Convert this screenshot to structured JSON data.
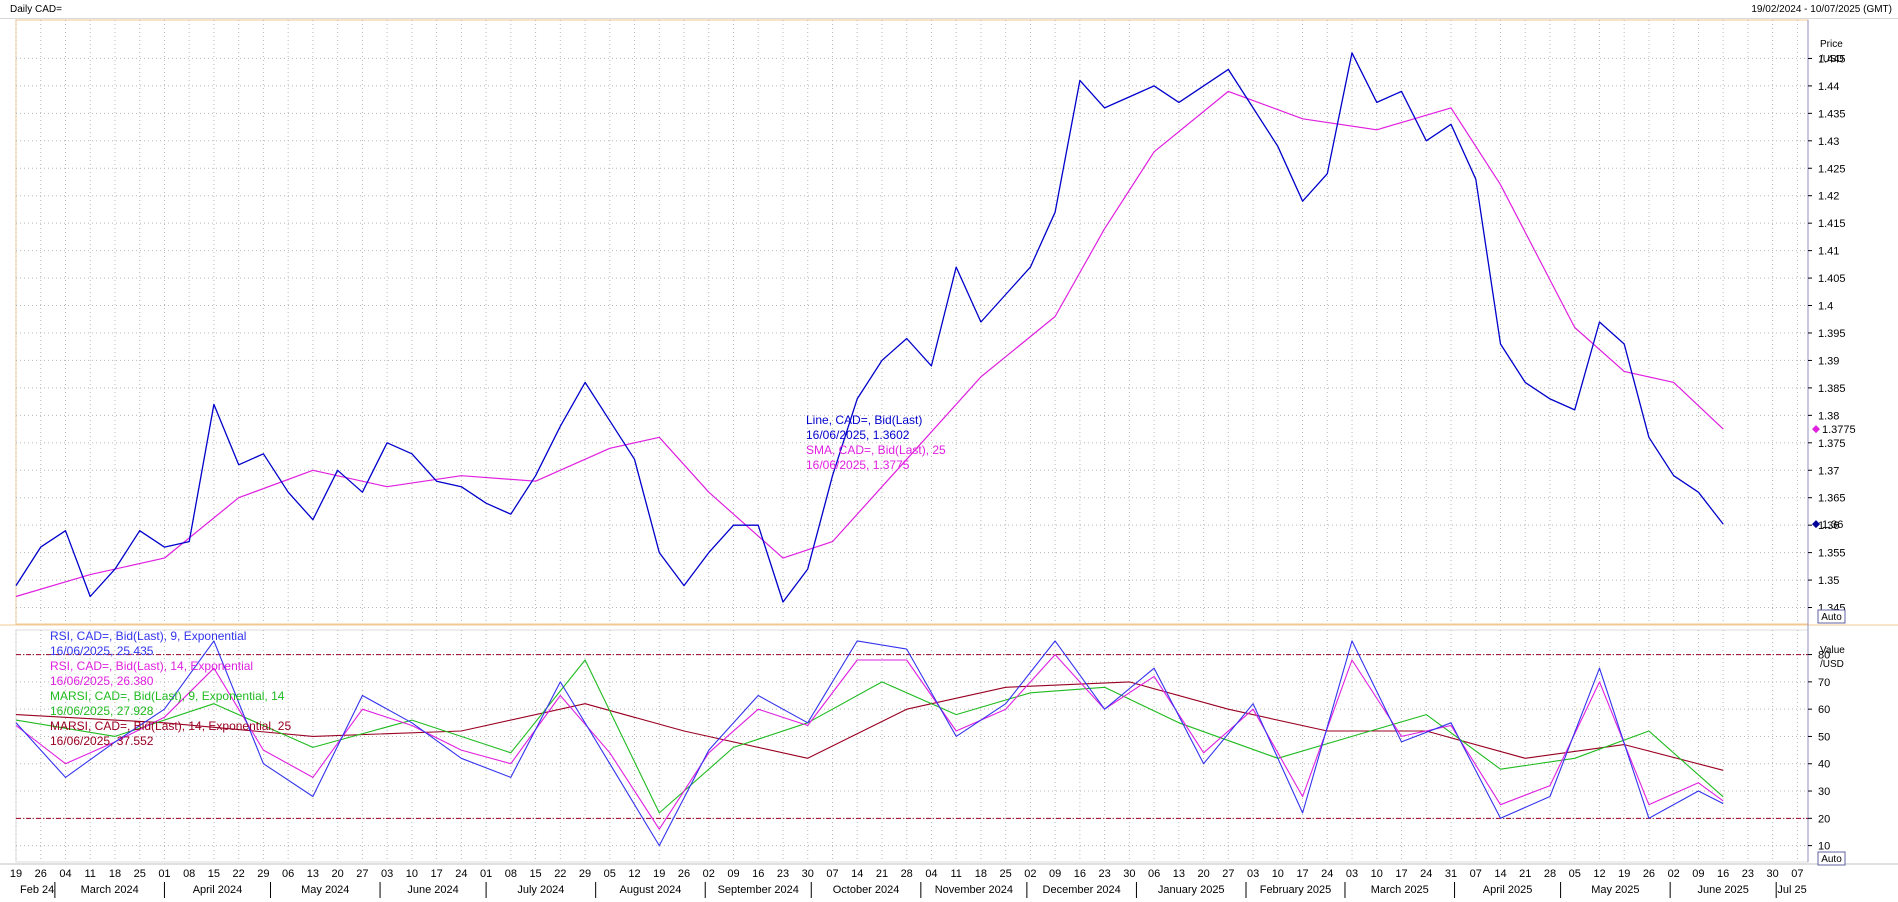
{
  "header": {
    "title": "Daily CAD=",
    "date_range": "19/02/2024 - 10/07/2025 (GMT)"
  },
  "price_panel": {
    "axis_title": "Price",
    "axis_unit": "/USD",
    "auto_label": "Auto",
    "legend": [
      {
        "label": "Line, CAD=, Bid(Last)",
        "value": "16/06/2025, 1.3602",
        "color": "#0000cc"
      },
      {
        "label": "SMA, CAD=, Bid(Last), 25",
        "value": "16/06/2025, 1.3775",
        "color": "#e020e0"
      }
    ],
    "last_markers": [
      {
        "value": 1.3775,
        "label": "1.3775",
        "color": "#e020e0"
      },
      {
        "value": 1.3602,
        "label": "1.36",
        "color": "#000099"
      }
    ]
  },
  "rsi_panel": {
    "axis_title": "Value",
    "axis_unit": "/USD",
    "auto_label": "Auto",
    "legend": [
      {
        "label": "RSI, CAD=, Bid(Last), 9, Exponential",
        "value": "16/06/2025, 25.435",
        "color": "#3333ee"
      },
      {
        "label": "RSI, CAD=, Bid(Last), 14, Exponential",
        "value": "16/06/2025, 26.380",
        "color": "#e020e0"
      },
      {
        "label": "MARSI, CAD=, Bid(Last), 9, Exponential, 14",
        "value": "16/06/2025, 27.928",
        "color": "#20bb20"
      },
      {
        "label": "MARSI, CAD=, Bid(Last), 14, Exponential, 25",
        "value": "16/06/2025, 37.552",
        "color": "#990022"
      }
    ]
  },
  "colors": {
    "price_line": "#0000cc",
    "sma": "#e020e0",
    "rsi9": "#3333ee",
    "rsi14": "#e020e0",
    "marsi9": "#20bb20",
    "marsi14": "#990022",
    "threshold_line": "#990022",
    "grid": "#b8b8b8"
  },
  "chart_data": [
    {
      "type": "line",
      "ylim": [
        1.342,
        1.452
      ],
      "yticks": [
        1.345,
        1.35,
        1.355,
        1.36,
        1.365,
        1.37,
        1.375,
        1.38,
        1.385,
        1.39,
        1.395,
        1.4,
        1.405,
        1.41,
        1.415,
        1.42,
        1.425,
        1.43,
        1.435,
        1.44,
        1.445
      ],
      "ytick_labels": [
        "1.345",
        "1.35",
        "1.355",
        "1.36",
        "1.365",
        "1.37",
        "1.375",
        "1.38",
        "1.385",
        "1.39",
        "1.395",
        "1.4",
        "1.405",
        "1.41",
        "1.415",
        "1.42",
        "1.425",
        "1.43",
        "1.435",
        "1.44",
        "1.445"
      ],
      "series": [
        {
          "name": "Line, CAD=, Bid(Last)",
          "x": [
            "2024-02-19",
            "2024-02-26",
            "2024-03-04",
            "2024-03-11",
            "2024-03-18",
            "2024-03-25",
            "2024-04-01",
            "2024-04-08",
            "2024-04-15",
            "2024-04-22",
            "2024-04-29",
            "2024-05-06",
            "2024-05-13",
            "2024-05-20",
            "2024-05-27",
            "2024-06-03",
            "2024-06-10",
            "2024-06-17",
            "2024-06-24",
            "2024-07-01",
            "2024-07-08",
            "2024-07-15",
            "2024-07-22",
            "2024-07-29",
            "2024-08-05",
            "2024-08-12",
            "2024-08-19",
            "2024-08-26",
            "2024-09-02",
            "2024-09-09",
            "2024-09-16",
            "2024-09-23",
            "2024-09-30",
            "2024-10-07",
            "2024-10-14",
            "2024-10-21",
            "2024-10-28",
            "2024-11-04",
            "2024-11-11",
            "2024-11-18",
            "2024-11-25",
            "2024-12-02",
            "2024-12-09",
            "2024-12-16",
            "2024-12-23",
            "2024-12-30",
            "2025-01-06",
            "2025-01-13",
            "2025-01-20",
            "2025-01-27",
            "2025-02-03",
            "2025-02-10",
            "2025-02-17",
            "2025-02-24",
            "2025-03-03",
            "2025-03-10",
            "2025-03-17",
            "2025-03-24",
            "2025-03-31",
            "2025-04-07",
            "2025-04-14",
            "2025-04-21",
            "2025-04-28",
            "2025-05-05",
            "2025-05-12",
            "2025-05-19",
            "2025-05-26",
            "2025-06-02",
            "2025-06-09",
            "2025-06-16"
          ],
          "values": [
            1.349,
            1.356,
            1.359,
            1.347,
            1.352,
            1.359,
            1.356,
            1.357,
            1.382,
            1.371,
            1.373,
            1.366,
            1.361,
            1.37,
            1.366,
            1.375,
            1.373,
            1.368,
            1.367,
            1.364,
            1.362,
            1.369,
            1.378,
            1.386,
            1.379,
            1.372,
            1.355,
            1.349,
            1.355,
            1.36,
            1.36,
            1.346,
            1.352,
            1.369,
            1.383,
            1.39,
            1.394,
            1.389,
            1.407,
            1.397,
            1.402,
            1.407,
            1.417,
            1.441,
            1.436,
            1.438,
            1.44,
            1.437,
            1.44,
            1.443,
            1.436,
            1.429,
            1.419,
            1.424,
            1.446,
            1.437,
            1.439,
            1.43,
            1.433,
            1.423,
            1.393,
            1.386,
            1.383,
            1.381,
            1.397,
            1.393,
            1.376,
            1.369,
            1.366,
            1.3602
          ]
        },
        {
          "name": "SMA, CAD=, Bid(Last), 25",
          "x": [
            "2024-02-19",
            "2024-03-11",
            "2024-04-01",
            "2024-04-22",
            "2024-05-13",
            "2024-06-03",
            "2024-06-24",
            "2024-07-15",
            "2024-08-05",
            "2024-08-19",
            "2024-09-02",
            "2024-09-23",
            "2024-10-07",
            "2024-10-28",
            "2024-11-18",
            "2024-12-09",
            "2024-12-23",
            "2025-01-06",
            "2025-01-27",
            "2025-02-17",
            "2025-03-10",
            "2025-03-31",
            "2025-04-14",
            "2025-05-05",
            "2025-05-19",
            "2025-06-02",
            "2025-06-16"
          ],
          "values": [
            1.347,
            1.351,
            1.354,
            1.365,
            1.37,
            1.367,
            1.369,
            1.368,
            1.374,
            1.376,
            1.366,
            1.354,
            1.357,
            1.372,
            1.387,
            1.398,
            1.414,
            1.428,
            1.439,
            1.434,
            1.432,
            1.436,
            1.422,
            1.396,
            1.388,
            1.386,
            1.3775
          ]
        }
      ]
    },
    {
      "type": "line",
      "ylim": [
        4,
        89
      ],
      "yticks": [
        10,
        20,
        30,
        40,
        50,
        60,
        70,
        80
      ],
      "ytick_labels": [
        "10",
        "20",
        "30",
        "40",
        "50",
        "60",
        "70",
        "80"
      ],
      "thresholds": [
        20,
        80
      ],
      "series": [
        {
          "name": "RSI, CAD=, Bid(Last), 9, Exponential",
          "x": [
            "2024-02-19",
            "2024-03-04",
            "2024-03-18",
            "2024-04-01",
            "2024-04-15",
            "2024-04-29",
            "2024-05-13",
            "2024-05-27",
            "2024-06-10",
            "2024-06-24",
            "2024-07-08",
            "2024-07-22",
            "2024-08-05",
            "2024-08-19",
            "2024-09-02",
            "2024-09-16",
            "2024-09-30",
            "2024-10-14",
            "2024-10-28",
            "2024-11-11",
            "2024-11-25",
            "2024-12-09",
            "2024-12-23",
            "2025-01-06",
            "2025-01-20",
            "2025-02-03",
            "2025-02-17",
            "2025-03-03",
            "2025-03-17",
            "2025-03-31",
            "2025-04-14",
            "2025-04-28",
            "2025-05-12",
            "2025-05-26",
            "2025-06-09",
            "2025-06-16"
          ],
          "values": [
            55,
            35,
            48,
            60,
            85,
            40,
            28,
            65,
            55,
            42,
            35,
            70,
            40,
            10,
            45,
            65,
            55,
            85,
            82,
            50,
            62,
            85,
            60,
            75,
            40,
            62,
            22,
            85,
            48,
            55,
            20,
            28,
            75,
            20,
            30,
            25.4
          ]
        },
        {
          "name": "RSI, CAD=, Bid(Last), 14, Exponential",
          "x": [
            "2024-02-19",
            "2024-03-04",
            "2024-03-18",
            "2024-04-01",
            "2024-04-15",
            "2024-04-29",
            "2024-05-13",
            "2024-05-27",
            "2024-06-10",
            "2024-06-24",
            "2024-07-08",
            "2024-07-22",
            "2024-08-05",
            "2024-08-19",
            "2024-09-02",
            "2024-09-16",
            "2024-09-30",
            "2024-10-14",
            "2024-10-28",
            "2024-11-11",
            "2024-11-25",
            "2024-12-09",
            "2024-12-23",
            "2025-01-06",
            "2025-01-20",
            "2025-02-03",
            "2025-02-17",
            "2025-03-03",
            "2025-03-17",
            "2025-03-31",
            "2025-04-14",
            "2025-04-28",
            "2025-05-12",
            "2025-05-26",
            "2025-06-09",
            "2025-06-16"
          ],
          "values": [
            54,
            40,
            48,
            57,
            75,
            45,
            35,
            60,
            54,
            45,
            40,
            65,
            44,
            16,
            44,
            60,
            54,
            78,
            78,
            52,
            60,
            80,
            60,
            72,
            44,
            60,
            28,
            78,
            50,
            54,
            25,
            32,
            70,
            25,
            33,
            26.4
          ]
        },
        {
          "name": "MARSI, CAD=, Bid(Last), 9, Exponential, 14",
          "x": [
            "2024-02-19",
            "2024-03-18",
            "2024-04-15",
            "2024-05-13",
            "2024-06-10",
            "2024-07-08",
            "2024-07-29",
            "2024-08-19",
            "2024-09-09",
            "2024-09-30",
            "2024-10-21",
            "2024-11-11",
            "2024-12-02",
            "2024-12-23",
            "2025-01-13",
            "2025-02-10",
            "2025-03-03",
            "2025-03-24",
            "2025-04-14",
            "2025-05-05",
            "2025-05-26",
            "2025-06-16"
          ],
          "values": [
            56,
            50,
            62,
            46,
            56,
            44,
            78,
            22,
            46,
            55,
            70,
            58,
            66,
            68,
            55,
            42,
            50,
            58,
            38,
            42,
            52,
            27.9
          ]
        },
        {
          "name": "MARSI, CAD=, Bid(Last), 14, Exponential, 25",
          "x": [
            "2024-02-19",
            "2024-04-01",
            "2024-05-13",
            "2024-06-24",
            "2024-07-29",
            "2024-08-26",
            "2024-09-30",
            "2024-10-28",
            "2024-11-25",
            "2024-12-30",
            "2025-01-27",
            "2025-02-24",
            "2025-03-24",
            "2025-04-21",
            "2025-05-19",
            "2025-06-16"
          ],
          "values": [
            58,
            55,
            50,
            52,
            62,
            52,
            42,
            60,
            68,
            70,
            60,
            52,
            52,
            42,
            47,
            37.6
          ]
        }
      ]
    }
  ],
  "x_axis": {
    "start": "2024-02-19",
    "end": "2025-07-10",
    "week_ticks": [
      {
        "d": "2024-02-19",
        "l": "19"
      },
      {
        "d": "2024-02-26",
        "l": "26"
      },
      {
        "d": "2024-03-04",
        "l": "04"
      },
      {
        "d": "2024-03-11",
        "l": "11"
      },
      {
        "d": "2024-03-18",
        "l": "18"
      },
      {
        "d": "2024-03-25",
        "l": "25"
      },
      {
        "d": "2024-04-01",
        "l": "01"
      },
      {
        "d": "2024-04-08",
        "l": "08"
      },
      {
        "d": "2024-04-15",
        "l": "15"
      },
      {
        "d": "2024-04-22",
        "l": "22"
      },
      {
        "d": "2024-04-29",
        "l": "29"
      },
      {
        "d": "2024-05-06",
        "l": "06"
      },
      {
        "d": "2024-05-13",
        "l": "13"
      },
      {
        "d": "2024-05-20",
        "l": "20"
      },
      {
        "d": "2024-05-27",
        "l": "27"
      },
      {
        "d": "2024-06-03",
        "l": "03"
      },
      {
        "d": "2024-06-10",
        "l": "10"
      },
      {
        "d": "2024-06-17",
        "l": "17"
      },
      {
        "d": "2024-06-24",
        "l": "24"
      },
      {
        "d": "2024-07-01",
        "l": "01"
      },
      {
        "d": "2024-07-08",
        "l": "08"
      },
      {
        "d": "2024-07-15",
        "l": "15"
      },
      {
        "d": "2024-07-22",
        "l": "22"
      },
      {
        "d": "2024-07-29",
        "l": "29"
      },
      {
        "d": "2024-08-05",
        "l": "05"
      },
      {
        "d": "2024-08-12",
        "l": "12"
      },
      {
        "d": "2024-08-19",
        "l": "19"
      },
      {
        "d": "2024-08-26",
        "l": "26"
      },
      {
        "d": "2024-09-02",
        "l": "02"
      },
      {
        "d": "2024-09-09",
        "l": "09"
      },
      {
        "d": "2024-09-16",
        "l": "16"
      },
      {
        "d": "2024-09-23",
        "l": "23"
      },
      {
        "d": "2024-09-30",
        "l": "30"
      },
      {
        "d": "2024-10-07",
        "l": "07"
      },
      {
        "d": "2024-10-14",
        "l": "14"
      },
      {
        "d": "2024-10-21",
        "l": "21"
      },
      {
        "d": "2024-10-28",
        "l": "28"
      },
      {
        "d": "2024-11-04",
        "l": "04"
      },
      {
        "d": "2024-11-11",
        "l": "11"
      },
      {
        "d": "2024-11-18",
        "l": "18"
      },
      {
        "d": "2024-11-25",
        "l": "25"
      },
      {
        "d": "2024-12-02",
        "l": "02"
      },
      {
        "d": "2024-12-09",
        "l": "09"
      },
      {
        "d": "2024-12-16",
        "l": "16"
      },
      {
        "d": "2024-12-23",
        "l": "23"
      },
      {
        "d": "2024-12-30",
        "l": "30"
      },
      {
        "d": "2025-01-06",
        "l": "06"
      },
      {
        "d": "2025-01-13",
        "l": "13"
      },
      {
        "d": "2025-01-20",
        "l": "20"
      },
      {
        "d": "2025-01-27",
        "l": "27"
      },
      {
        "d": "2025-02-03",
        "l": "03"
      },
      {
        "d": "2025-02-10",
        "l": "10"
      },
      {
        "d": "2025-02-17",
        "l": "17"
      },
      {
        "d": "2025-02-24",
        "l": "24"
      },
      {
        "d": "2025-03-03",
        "l": "03"
      },
      {
        "d": "2025-03-10",
        "l": "10"
      },
      {
        "d": "2025-03-17",
        "l": "17"
      },
      {
        "d": "2025-03-24",
        "l": "24"
      },
      {
        "d": "2025-03-31",
        "l": "31"
      },
      {
        "d": "2025-04-07",
        "l": "07"
      },
      {
        "d": "2025-04-14",
        "l": "14"
      },
      {
        "d": "2025-04-21",
        "l": "21"
      },
      {
        "d": "2025-04-28",
        "l": "28"
      },
      {
        "d": "2025-05-05",
        "l": "05"
      },
      {
        "d": "2025-05-12",
        "l": "12"
      },
      {
        "d": "2025-05-19",
        "l": "19"
      },
      {
        "d": "2025-05-26",
        "l": "26"
      },
      {
        "d": "2025-06-02",
        "l": "02"
      },
      {
        "d": "2025-06-09",
        "l": "09"
      },
      {
        "d": "2025-06-16",
        "l": "16"
      },
      {
        "d": "2025-06-23",
        "l": "23"
      },
      {
        "d": "2025-06-30",
        "l": "30"
      },
      {
        "d": "2025-07-07",
        "l": "07"
      }
    ],
    "months": [
      {
        "d": "2024-02-19",
        "l": "Feb 24"
      },
      {
        "d": "2024-03-01",
        "l": "March 2024"
      },
      {
        "d": "2024-04-01",
        "l": "April 2024"
      },
      {
        "d": "2024-05-01",
        "l": "May 2024"
      },
      {
        "d": "2024-06-01",
        "l": "June 2024"
      },
      {
        "d": "2024-07-01",
        "l": "July 2024"
      },
      {
        "d": "2024-08-01",
        "l": "August 2024"
      },
      {
        "d": "2024-09-01",
        "l": "September 2024"
      },
      {
        "d": "2024-10-01",
        "l": "October 2024"
      },
      {
        "d": "2024-11-01",
        "l": "November 2024"
      },
      {
        "d": "2024-12-01",
        "l": "December 2024"
      },
      {
        "d": "2025-01-01",
        "l": "January 2025"
      },
      {
        "d": "2025-02-01",
        "l": "February 2025"
      },
      {
        "d": "2025-03-01",
        "l": "March 2025"
      },
      {
        "d": "2025-04-01",
        "l": "April 2025"
      },
      {
        "d": "2025-05-01",
        "l": "May 2025"
      },
      {
        "d": "2025-06-01",
        "l": "June 2025"
      },
      {
        "d": "2025-07-01",
        "l": "Jul 25"
      }
    ]
  }
}
